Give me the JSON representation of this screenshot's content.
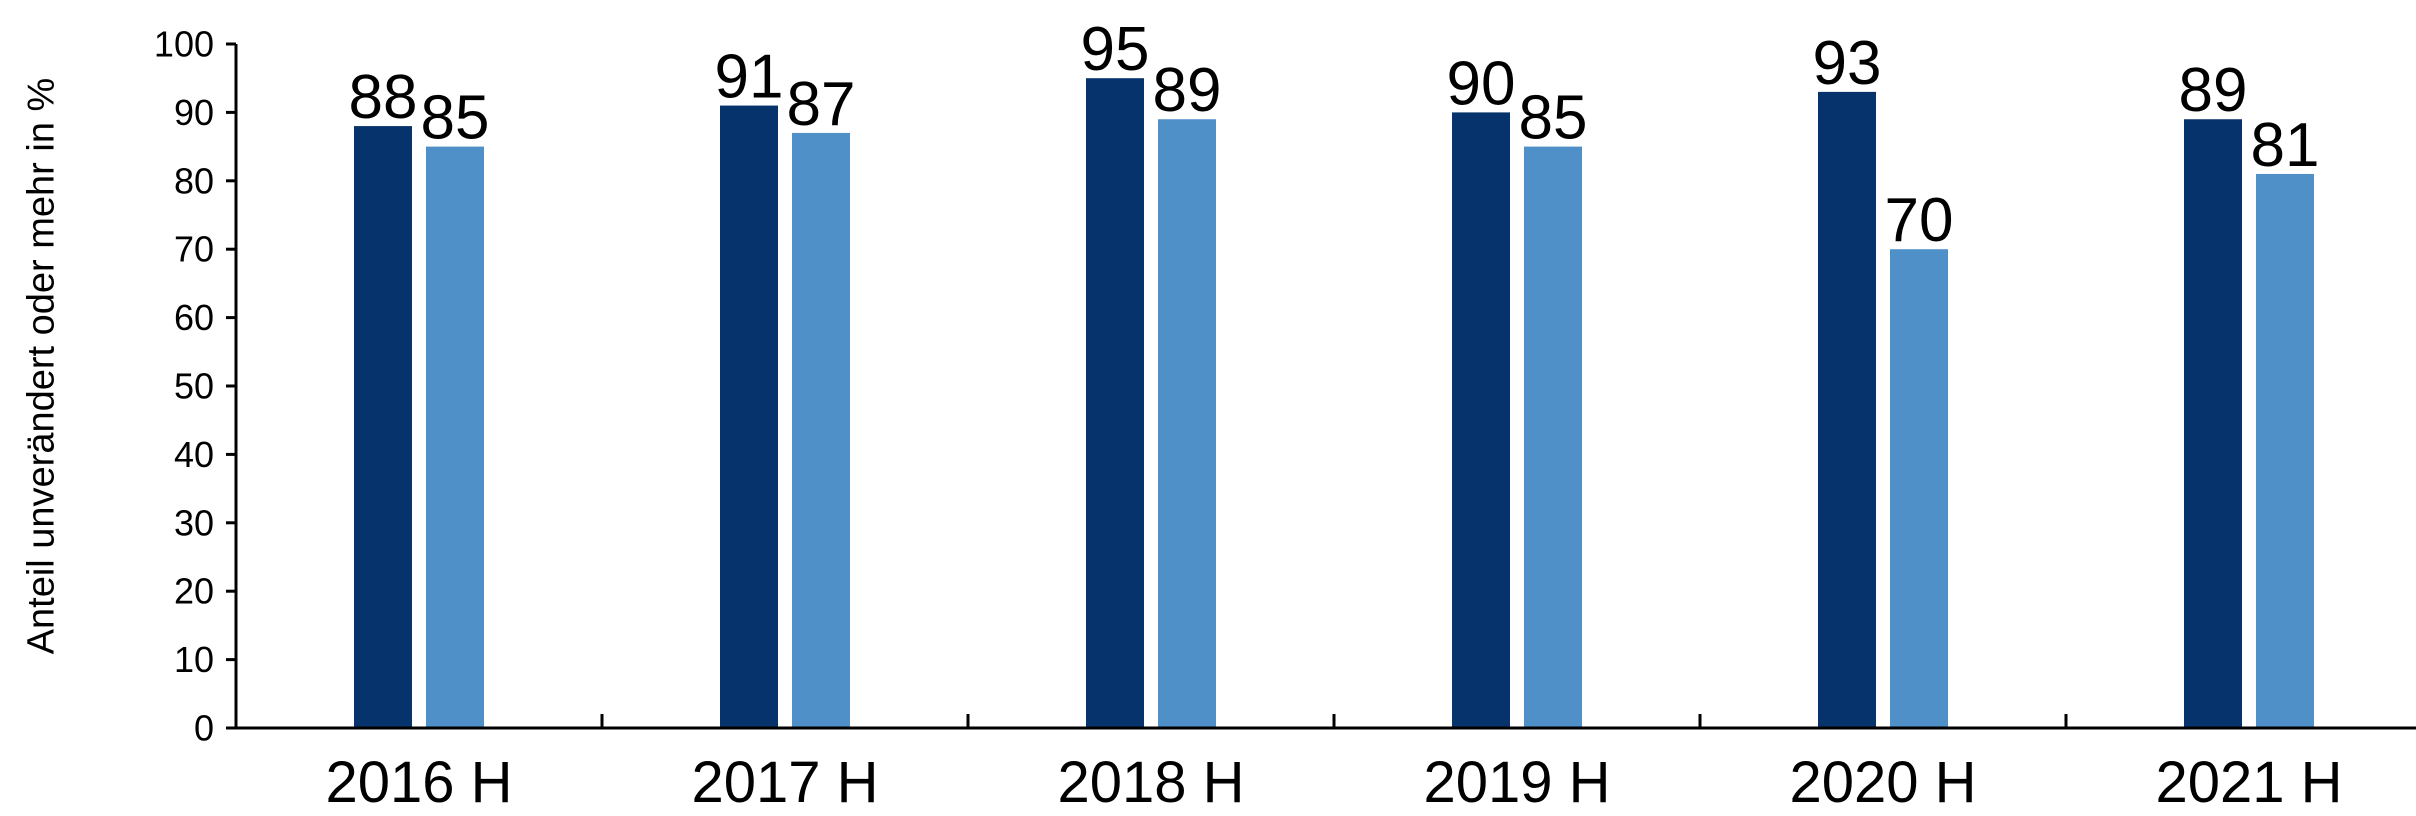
{
  "chart_data": {
    "type": "bar",
    "title": "",
    "xlabel": "",
    "ylabel": "Anteil unverändert oder mehr in %",
    "ylim": [
      0,
      100
    ],
    "yticks": [
      "0",
      "10",
      "20",
      "30",
      "40",
      "50",
      "60",
      "70",
      "80",
      "90",
      "100"
    ],
    "categories": [
      "2016 H",
      "2017 H",
      "2018 H",
      "2019 H",
      "2020 H",
      "2021 H"
    ],
    "series": [
      {
        "color": "#06336b",
        "values": [
          88,
          91,
          95,
          90,
          93,
          89
        ]
      },
      {
        "color": "#5090c8",
        "values": [
          85,
          87,
          89,
          85,
          70,
          81
        ]
      }
    ],
    "legend": "none",
    "grid": false
  }
}
